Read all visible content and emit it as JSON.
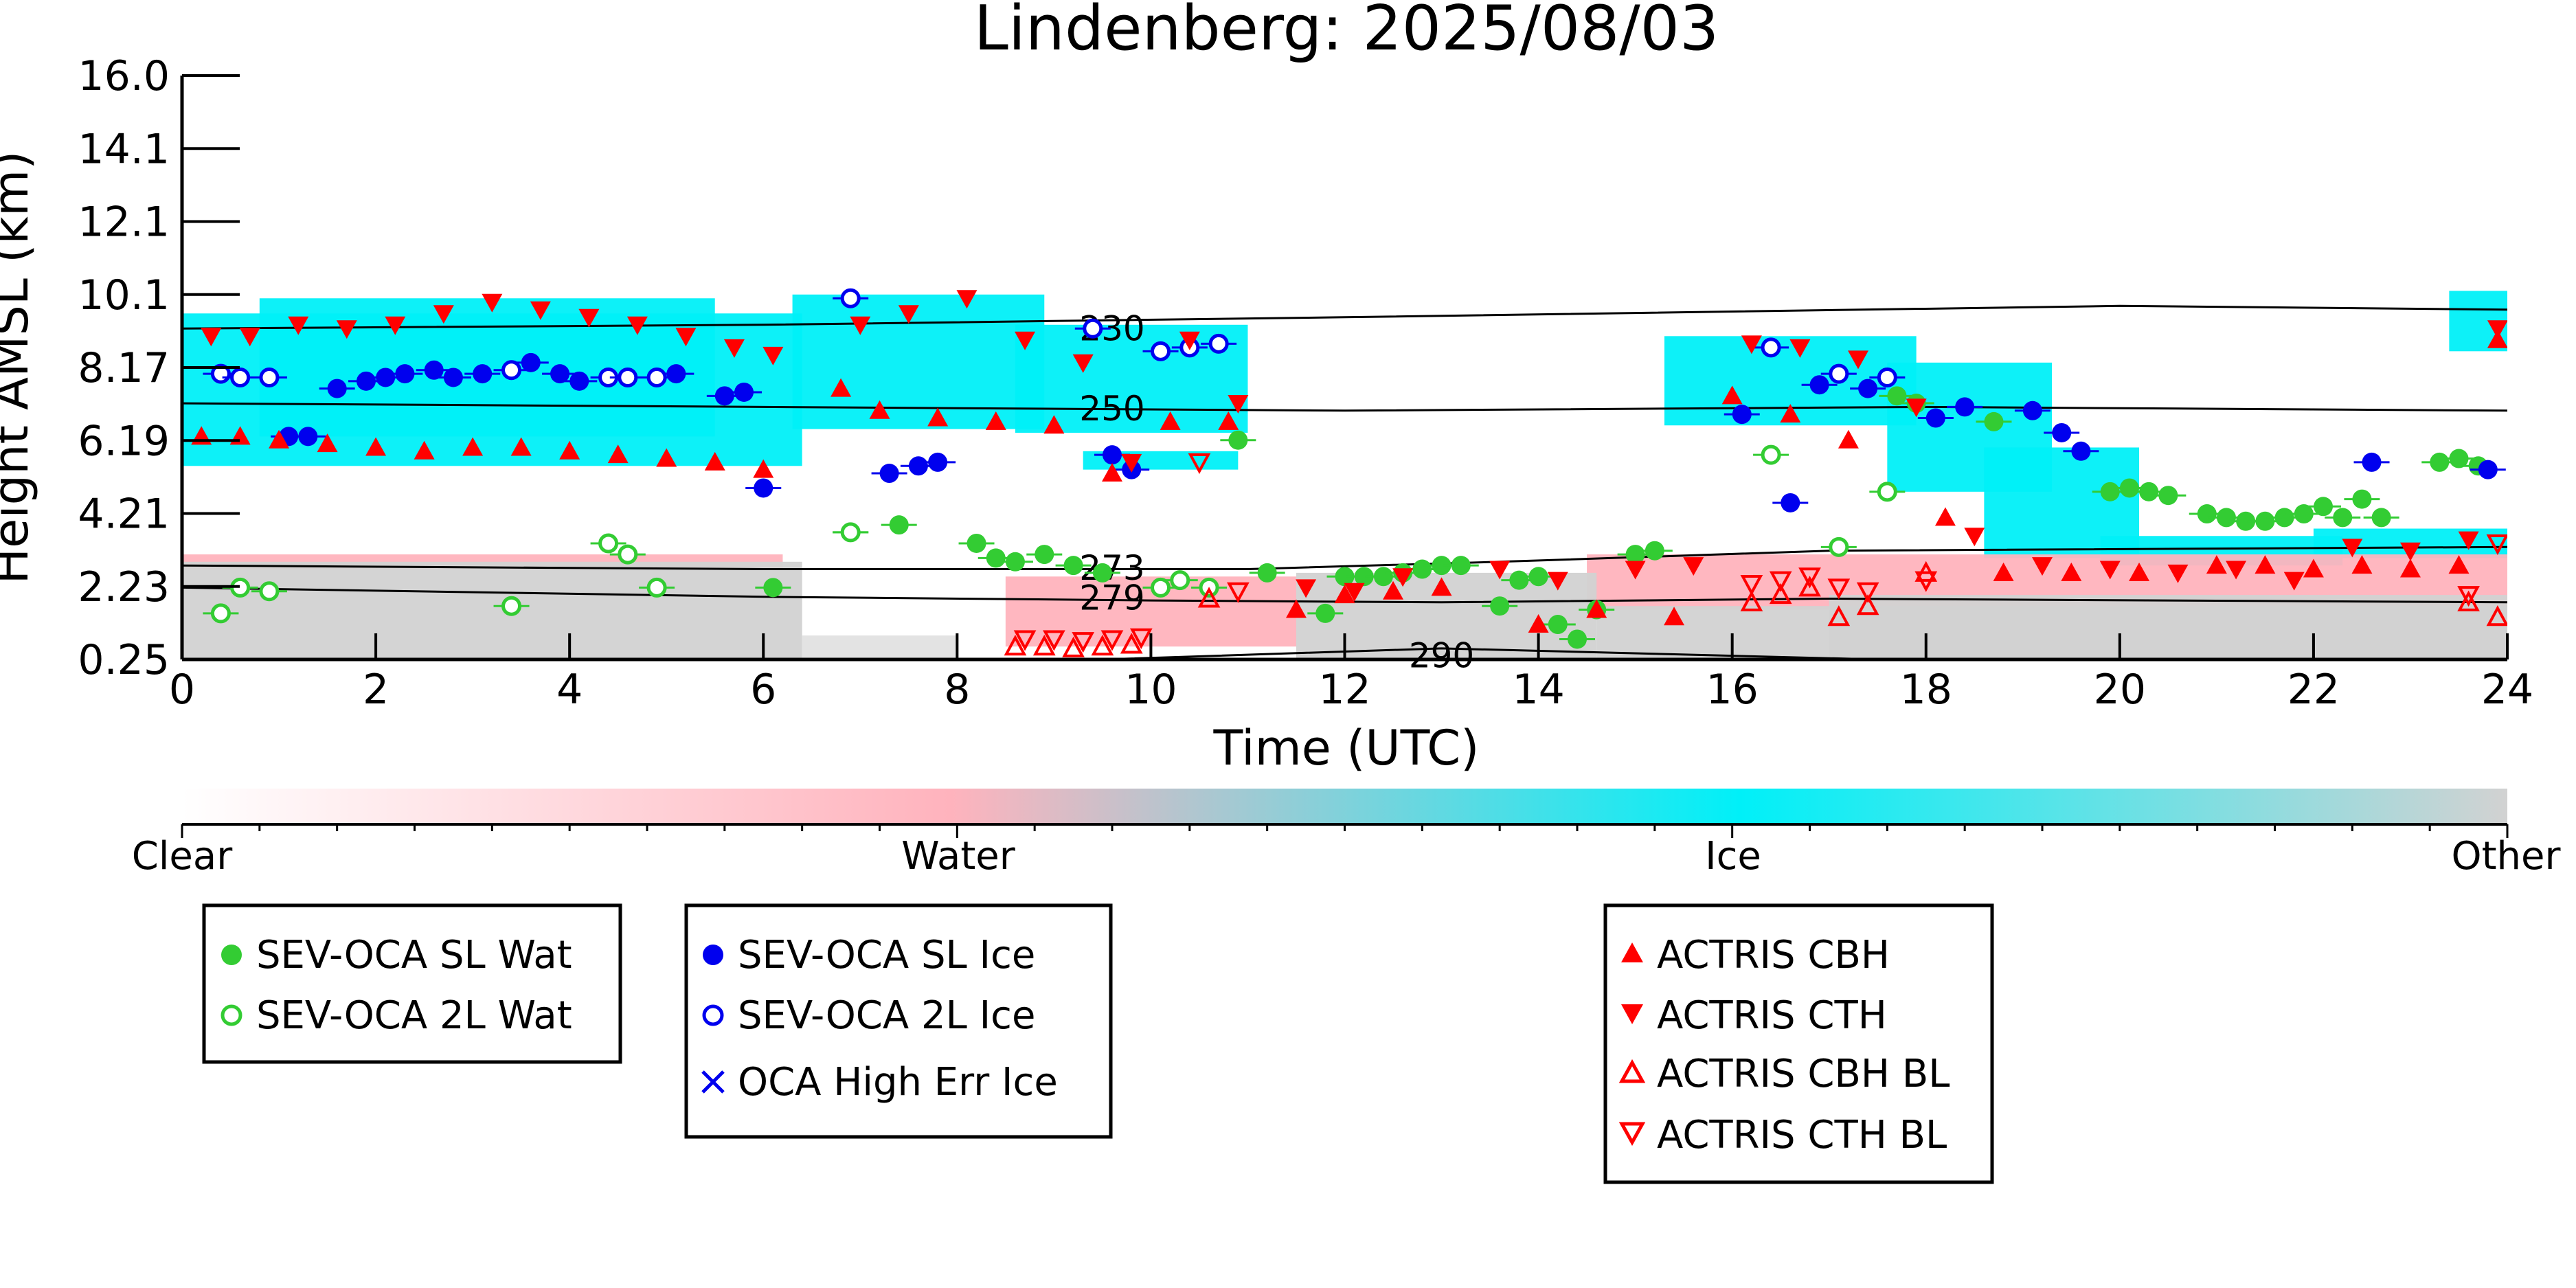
{
  "chart_data": {
    "type": "scatter",
    "title": "Lindenberg: 2025/08/03",
    "xlabel": "Time (UTC)",
    "ylabel": "Height AMSL (km)",
    "xlim": [
      0,
      24
    ],
    "xticks": [
      "0",
      "2",
      "4",
      "6",
      "8",
      "10",
      "12",
      "14",
      "16",
      "18",
      "20",
      "22",
      "24"
    ],
    "yticks": [
      "16.0",
      "14.1",
      "12.1",
      "10.1",
      "8.17",
      "6.19",
      "4.21",
      "2.23",
      "0.25"
    ],
    "yscale": "non-linear (tick spacing uniform)",
    "background": "cloud phase image (Clear / Water / Ice / Other)",
    "isotherms": [
      {
        "label": "230",
        "points": [
          [
            0,
            9.2
          ],
          [
            6,
            9.3
          ],
          [
            12,
            9.5
          ],
          [
            20,
            9.8
          ],
          [
            24,
            9.7
          ]
        ]
      },
      {
        "label": "250",
        "points": [
          [
            0,
            7.2
          ],
          [
            6,
            7.1
          ],
          [
            12,
            7.0
          ],
          [
            18,
            7.1
          ],
          [
            24,
            7.0
          ]
        ]
      },
      {
        "label": "273",
        "points": [
          [
            0,
            2.8
          ],
          [
            6,
            2.7
          ],
          [
            11,
            2.7
          ],
          [
            13.6,
            2.9
          ],
          [
            17,
            3.2
          ],
          [
            24,
            3.3
          ]
        ]
      },
      {
        "label": "279",
        "points": [
          [
            0,
            2.2
          ],
          [
            6,
            1.95
          ],
          [
            10,
            1.85
          ],
          [
            13,
            1.8
          ],
          [
            17,
            1.9
          ],
          [
            24,
            1.8
          ]
        ]
      },
      {
        "label": "290",
        "points": [
          [
            0,
            0.25
          ],
          [
            9.5,
            0.25
          ],
          [
            13,
            0.55
          ],
          [
            16,
            0.35
          ],
          [
            17.5,
            0.25
          ]
        ]
      }
    ],
    "series": [
      {
        "name": "SEV-OCA SL Wat",
        "color": "#33cc33",
        "marker": "filled-circle",
        "x": [
          6.1,
          6.9,
          7.4,
          8.2,
          8.4,
          8.6,
          8.9,
          9.2,
          9.5,
          10.9,
          11.2,
          11.8,
          12.0,
          12.2,
          12.4,
          12.6,
          12.8,
          13.0,
          13.2,
          13.6,
          13.8,
          14.0,
          14.2,
          14.4,
          14.6,
          15.0,
          15.2,
          17.7,
          17.9,
          18.7,
          19.9,
          20.1,
          20.3,
          20.5,
          20.9,
          21.1,
          21.3,
          21.5,
          21.7,
          21.9,
          22.1,
          22.3,
          22.5,
          22.7,
          23.3,
          23.5,
          23.7
        ],
        "y": [
          2.2,
          3.7,
          3.9,
          3.4,
          3.0,
          2.9,
          3.1,
          2.8,
          2.6,
          6.2,
          2.6,
          1.5,
          2.5,
          2.5,
          2.5,
          2.6,
          2.7,
          2.8,
          2.8,
          1.7,
          2.4,
          2.5,
          1.2,
          0.8,
          1.6,
          3.1,
          3.2,
          7.4,
          7.2,
          6.7,
          4.8,
          4.9,
          4.8,
          4.7,
          4.2,
          4.1,
          4.0,
          4.0,
          4.1,
          4.2,
          4.4,
          4.1,
          4.6,
          4.1,
          5.6,
          5.7,
          5.5
        ]
      },
      {
        "name": "SEV-OCA 2L Wat",
        "color": "#33cc33",
        "marker": "open-circle",
        "x": [
          0.4,
          0.6,
          0.9,
          3.4,
          4.4,
          4.6,
          4.9,
          6.9,
          10.1,
          10.3,
          10.6,
          16.4,
          17.1,
          17.6
        ],
        "y": [
          1.5,
          2.2,
          2.1,
          1.7,
          3.4,
          3.1,
          2.2,
          3.7,
          2.2,
          2.4,
          2.2,
          5.8,
          3.3,
          4.8
        ]
      },
      {
        "name": "SEV-OCA SL Ice",
        "color": "#0000ee",
        "marker": "filled-circle",
        "x": [
          1.1,
          1.3,
          1.6,
          1.9,
          2.1,
          2.3,
          2.6,
          2.8,
          3.1,
          3.6,
          3.9,
          4.1,
          5.1,
          5.6,
          5.8,
          6.0,
          7.3,
          7.6,
          7.8,
          9.6,
          9.8,
          16.1,
          16.6,
          16.9,
          17.4,
          18.1,
          18.4,
          19.1,
          19.4,
          19.6,
          22.6,
          23.8
        ],
        "y": [
          6.3,
          6.3,
          7.6,
          7.8,
          7.9,
          8.0,
          8.1,
          7.9,
          8.0,
          8.3,
          8.0,
          7.8,
          8.0,
          7.4,
          7.5,
          4.9,
          5.3,
          5.5,
          5.6,
          5.8,
          5.4,
          6.9,
          4.5,
          7.7,
          7.6,
          6.8,
          7.1,
          7.0,
          6.4,
          5.9,
          5.6,
          5.4
        ]
      },
      {
        "name": "SEV-OCA 2L Ice",
        "color": "#0000ee",
        "marker": "open-circle",
        "x": [
          0.4,
          0.6,
          0.9,
          3.4,
          4.4,
          4.6,
          4.9,
          6.9,
          9.4,
          10.1,
          10.4,
          10.7,
          16.4,
          17.1,
          17.6
        ],
        "y": [
          8.0,
          7.9,
          7.9,
          8.1,
          7.9,
          7.9,
          7.9,
          10.0,
          9.2,
          8.6,
          8.7,
          8.8,
          8.7,
          8.0,
          7.9
        ]
      },
      {
        "name": "OCA High Err Ice",
        "color": "#0000ee",
        "marker": "x",
        "x": [],
        "y": []
      },
      {
        "name": "ACTRIS CBH",
        "color": "#ff0000",
        "marker": "triangle-up",
        "x": [
          0.2,
          0.6,
          1.0,
          1.5,
          2.0,
          2.5,
          3.0,
          3.5,
          4.0,
          4.5,
          5.0,
          5.5,
          6.0,
          6.8,
          7.2,
          7.8,
          8.4,
          9.0,
          9.6,
          10.2,
          10.8,
          11.5,
          12.0,
          12.5,
          13.0,
          14.0,
          14.6,
          15.4,
          16.0,
          16.6,
          17.2,
          18.2,
          18.8,
          19.5,
          20.2,
          21.0,
          21.5,
          22.0,
          22.5,
          23.0,
          23.5,
          23.9
        ],
        "y": [
          6.3,
          6.3,
          6.2,
          6.1,
          6.0,
          5.9,
          6.0,
          6.0,
          5.9,
          5.8,
          5.7,
          5.6,
          5.4,
          7.6,
          7.0,
          6.8,
          6.7,
          6.6,
          5.3,
          6.7,
          6.7,
          1.6,
          2.0,
          2.1,
          2.2,
          1.2,
          1.6,
          1.4,
          7.4,
          6.9,
          6.2,
          4.1,
          2.6,
          2.6,
          2.6,
          2.8,
          2.8,
          2.7,
          2.8,
          2.7,
          2.8,
          8.9
        ]
      },
      {
        "name": "ACTRIS CTH",
        "color": "#ff0000",
        "marker": "triangle-down",
        "x": [
          0.3,
          0.7,
          1.2,
          1.7,
          2.2,
          2.7,
          3.2,
          3.7,
          4.2,
          4.7,
          5.2,
          5.7,
          6.1,
          7.0,
          7.5,
          8.1,
          8.7,
          9.3,
          9.8,
          10.4,
          10.9,
          11.6,
          12.1,
          12.6,
          13.6,
          14.2,
          15.0,
          15.6,
          16.2,
          16.7,
          17.3,
          17.9,
          18.5,
          19.2,
          19.9,
          20.6,
          21.2,
          21.8,
          22.4,
          23.0,
          23.6,
          23.9
        ],
        "y": [
          9.0,
          9.0,
          9.3,
          9.2,
          9.3,
          9.6,
          9.9,
          9.7,
          9.5,
          9.3,
          9.0,
          8.7,
          8.5,
          9.3,
          9.6,
          10.0,
          8.9,
          8.3,
          5.6,
          8.9,
          7.2,
          2.2,
          2.1,
          2.5,
          2.7,
          2.4,
          2.7,
          2.8,
          8.8,
          8.7,
          8.4,
          7.1,
          3.6,
          2.8,
          2.7,
          2.6,
          2.7,
          2.4,
          3.3,
          3.2,
          3.5,
          9.2
        ]
      },
      {
        "name": "ACTRIS CBH BL",
        "color": "#ff0000",
        "marker": "open-triangle-up",
        "x": [
          8.6,
          8.9,
          9.2,
          9.5,
          9.8,
          10.6,
          16.2,
          16.5,
          16.8,
          17.1,
          17.4,
          18.0,
          23.6,
          23.9
        ],
        "y": [
          0.6,
          0.6,
          0.55,
          0.6,
          0.65,
          1.9,
          1.8,
          2.0,
          2.2,
          1.4,
          1.7,
          2.6,
          1.8,
          1.4
        ]
      },
      {
        "name": "ACTRIS CTH BL",
        "color": "#ff0000",
        "marker": "open-triangle-down",
        "x": [
          8.7,
          9.0,
          9.3,
          9.6,
          9.9,
          10.5,
          10.9,
          16.2,
          16.5,
          16.8,
          17.1,
          17.4,
          18.0,
          23.6,
          23.9
        ],
        "y": [
          0.8,
          0.8,
          0.75,
          0.8,
          0.85,
          5.6,
          2.1,
          2.3,
          2.4,
          2.5,
          2.2,
          2.1,
          2.4,
          2.0,
          3.4
        ]
      }
    ],
    "colorbar": {
      "labels": [
        "Clear",
        "Water",
        "Ice",
        "Other"
      ]
    },
    "legends": [
      [
        "SEV-OCA SL Wat",
        "SEV-OCA 2L Wat"
      ],
      [
        "SEV-OCA SL Ice",
        "SEV-OCA 2L Ice",
        "OCA High Err Ice"
      ],
      [
        "ACTRIS CBH",
        "ACTRIS CTH",
        "ACTRIS CBH BL",
        "ACTRIS CTH BL"
      ]
    ]
  }
}
